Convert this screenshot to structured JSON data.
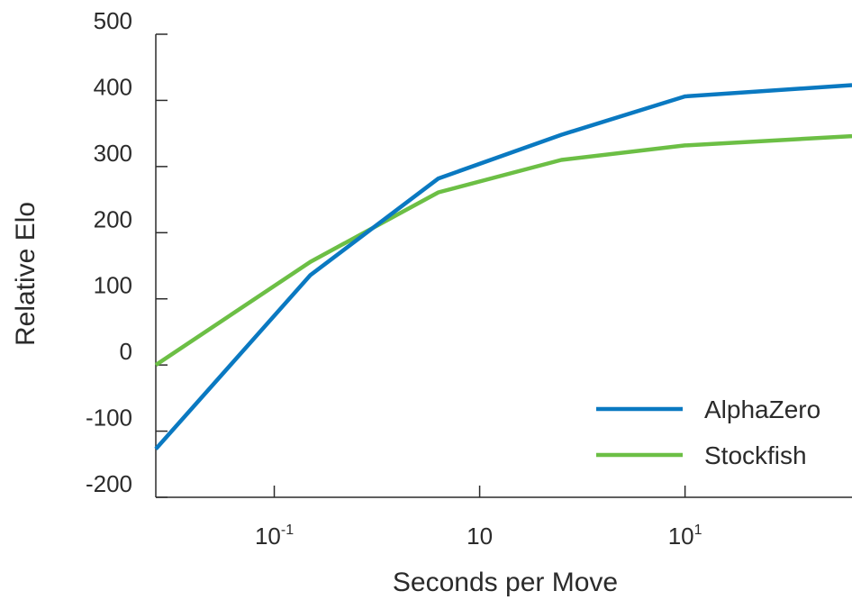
{
  "chart_data": {
    "type": "line",
    "title": "",
    "xlabel": "Seconds per Move",
    "ylabel": "Relative Elo",
    "x_scale": "log",
    "x_ticks": [
      {
        "value": 0.1,
        "base": "10",
        "exp": "-1"
      },
      {
        "value": 1,
        "base": "10",
        "exp": ""
      },
      {
        "value": 10,
        "base": "10",
        "exp": "1"
      }
    ],
    "xlim": [
      0.0265,
      65
    ],
    "y_ticks": [
      500,
      400,
      300,
      200,
      100,
      0,
      -100,
      -200
    ],
    "ylim": [
      -200,
      500
    ],
    "legend_position": "bottom-right",
    "grid": false,
    "series": [
      {
        "name": "AlphaZero",
        "color": "#0a79c1",
        "points": [
          [
            0.0265,
            -127
          ],
          [
            0.15,
            136
          ],
          [
            0.63,
            282
          ],
          [
            2.5,
            348
          ],
          [
            10,
            406
          ],
          [
            65,
            423
          ]
        ]
      },
      {
        "name": "Stockfish",
        "color": "#6cbf45",
        "points": [
          [
            0.0265,
            0
          ],
          [
            0.15,
            156
          ],
          [
            0.63,
            261
          ],
          [
            2.5,
            310
          ],
          [
            10,
            332
          ],
          [
            65,
            346
          ]
        ]
      }
    ]
  }
}
